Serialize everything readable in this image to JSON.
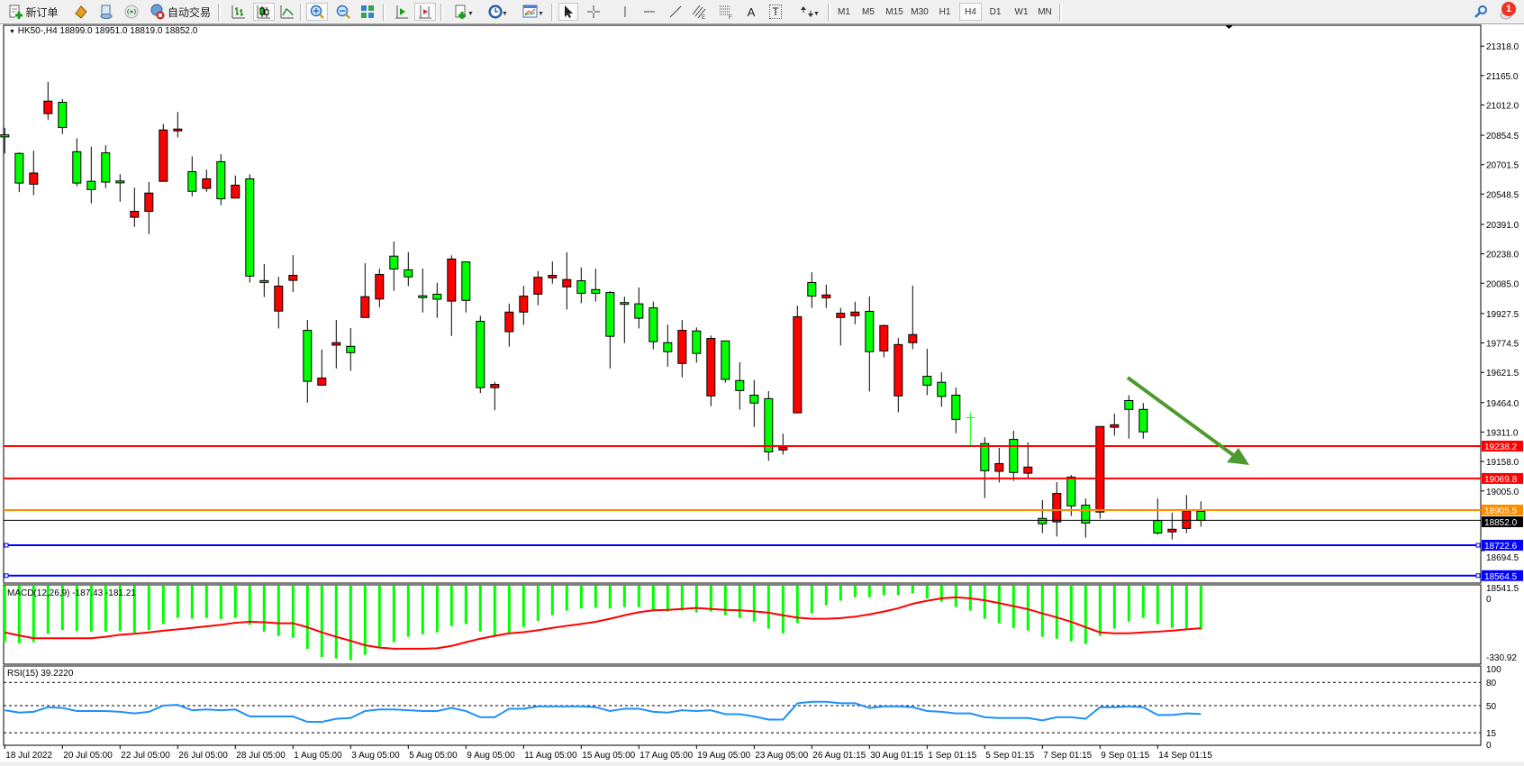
{
  "toolbar": {
    "new_order": "新订单",
    "auto_trading": "自动交易",
    "timeframes": [
      "M1",
      "M5",
      "M15",
      "M30",
      "H1",
      "H4",
      "D1",
      "W1",
      "MN"
    ],
    "active_timeframe": "H4",
    "tool_text_A": "A",
    "tool_text_T": "T",
    "notification_count": "1",
    "icons": [
      "new-order-icon",
      "history-icon",
      "market-watch-icon",
      "signals-icon",
      "auto-trading-icon",
      "bar-chart-icon",
      "candlestick-icon",
      "line-chart-icon",
      "zoom-in-icon",
      "zoom-out-icon",
      "tile-windows-icon",
      "autoscroll-icon",
      "chart-shift-icon",
      "indicators-icon",
      "periods-icon",
      "templates-icon",
      "cursor-icon",
      "crosshair-icon",
      "vertical-line-icon",
      "horizontal-line-icon",
      "trendline-icon",
      "equidistant-channel-icon",
      "fibonacci-icon",
      "text-icon",
      "text-label-icon",
      "arrows-icon",
      "search-icon",
      "notifications-icon"
    ]
  },
  "chart_header": "HK50-,H4  18899.0 18951.0 18819.0 18852.0",
  "chart_data": [
    {
      "type": "candlestick",
      "symbol": "HK50-",
      "timeframe": "H4",
      "ohlc_header": {
        "open": 18899.0,
        "high": 18951.0,
        "low": 18819.0,
        "close": 18852.0
      },
      "ylim": [
        18525.9,
        21426.6
      ],
      "yticks": [
        "21318.0",
        "21165.0",
        "21012.0",
        "20854.5",
        "20701.5",
        "20548.5",
        "20391.0",
        "20238.0",
        "20085.0",
        "19927.5",
        "19774.5",
        "19621.5",
        "19464.0",
        "19311.0",
        "19158.0",
        "19005.0",
        "18694.5",
        "18541.5"
      ],
      "xticks": [
        "18 Jul 2022",
        "20 Jul 05:00",
        "22 Jul 05:00",
        "26 Jul 05:00",
        "28 Jul 05:00",
        "1 Aug 05:00",
        "3 Aug 05:00",
        "5 Aug 05:00",
        "9 Aug 05:00",
        "11 Aug 05:00",
        "15 Aug 05:00",
        "17 Aug 05:00",
        "19 Aug 05:00",
        "23 Aug 05:00",
        "26 Aug 01:15",
        "30 Aug 01:15",
        "1 Sep 01:15",
        "5 Sep 01:15",
        "7 Sep 01:15",
        "9 Sep 01:15",
        "14 Sep 01:15"
      ],
      "colors": {
        "bull": "#FF0000",
        "bear": "#00FF00",
        "doji": "#00FF00",
        "outline": "#000000"
      },
      "ohlc": [
        [
          20852,
          20893,
          20760,
          20846
        ],
        [
          20760,
          20765,
          20559,
          20606
        ],
        [
          20600,
          20774,
          20543,
          20658
        ],
        [
          20967,
          21132,
          20936,
          21032
        ],
        [
          21026,
          21043,
          20861,
          20895
        ],
        [
          20769,
          20839,
          20589,
          20606
        ],
        [
          20615,
          20795,
          20500,
          20572
        ],
        [
          20763,
          20802,
          20580,
          20611
        ],
        [
          20612,
          20652,
          20509,
          20607
        ],
        [
          20428,
          20582,
          20378,
          20459
        ],
        [
          20459,
          20611,
          20341,
          20554
        ],
        [
          20615,
          20913,
          20615,
          20882
        ],
        [
          20878,
          20976,
          20843,
          20882
        ],
        [
          20665,
          20745,
          20537,
          20563
        ],
        [
          20578,
          20676,
          20561,
          20628
        ],
        [
          20717,
          20756,
          20491,
          20524
        ],
        [
          20528,
          20645,
          20528,
          20595
        ],
        [
          20628,
          20652,
          20089,
          20122
        ],
        [
          20094,
          20185,
          20013,
          20090
        ],
        [
          19940,
          20118,
          19850,
          20070
        ],
        [
          20100,
          20231,
          20040,
          20126
        ],
        [
          19840,
          19894,
          19464,
          19575
        ],
        [
          19555,
          19740,
          19555,
          19592
        ],
        [
          19763,
          19894,
          19642,
          19776
        ],
        [
          19757,
          19852,
          19629,
          19724
        ],
        [
          19907,
          20189,
          19907,
          20015
        ],
        [
          20003,
          20161,
          19959,
          20131
        ],
        [
          20226,
          20302,
          20046,
          20159
        ],
        [
          20155,
          20246,
          20070,
          20118
        ],
        [
          20015,
          20161,
          19933,
          20011
        ],
        [
          20028,
          20087,
          19905,
          20002
        ],
        [
          19992,
          20230,
          19811,
          20211
        ],
        [
          20196,
          20196,
          19933,
          19996
        ],
        [
          19887,
          19916,
          19514,
          19542
        ],
        [
          19542,
          19572,
          19424,
          19559
        ],
        [
          19833,
          19979,
          19755,
          19935
        ],
        [
          19935,
          20072,
          19868,
          20018
        ],
        [
          20028,
          20148,
          19970,
          20116
        ],
        [
          20113,
          20198,
          20083,
          20126
        ],
        [
          20066,
          20246,
          19948,
          20104
        ],
        [
          20098,
          20167,
          19981,
          20033
        ],
        [
          20052,
          20161,
          19990,
          20033
        ],
        [
          20037,
          20044,
          19642,
          19809
        ],
        [
          19980,
          20015,
          19774,
          19976
        ],
        [
          19978,
          20063,
          19850,
          19903
        ],
        [
          19957,
          19989,
          19742,
          19781
        ],
        [
          19776,
          19870,
          19651,
          19729
        ],
        [
          19668,
          19894,
          19596,
          19840
        ],
        [
          19837,
          19855,
          19672,
          19720
        ],
        [
          19499,
          19813,
          19446,
          19798
        ],
        [
          19785,
          19785,
          19568,
          19585
        ],
        [
          19579,
          19674,
          19427,
          19527
        ],
        [
          19503,
          19581,
          19338,
          19462
        ],
        [
          19485,
          19524,
          19162,
          19208
        ],
        [
          19218,
          19303,
          19194,
          19233
        ],
        [
          19411,
          19968,
          19411,
          19911
        ],
        [
          20089,
          20142,
          19957,
          20018
        ],
        [
          20009,
          20078,
          19957,
          20024
        ],
        [
          19907,
          19957,
          19761,
          19929
        ],
        [
          19916,
          19989,
          19872,
          19935
        ],
        [
          19939,
          20017,
          19522,
          19729
        ],
        [
          19733,
          19870,
          19700,
          19865
        ],
        [
          19499,
          19800,
          19414,
          19766
        ],
        [
          19776,
          20072,
          19742,
          19818
        ],
        [
          19601,
          19744,
          19503,
          19555
        ],
        [
          19570,
          19622,
          19442,
          19496
        ],
        [
          19503,
          19542,
          19305,
          19377
        ],
        [
          19386,
          19414,
          19240,
          19386
        ],
        [
          19251,
          19284,
          18968,
          19110
        ],
        [
          19107,
          19229,
          19049,
          19147
        ],
        [
          19273,
          19318,
          19057,
          19101
        ],
        [
          19097,
          19257,
          19073,
          19129
        ],
        [
          18862,
          18957,
          18786,
          18834
        ],
        [
          18844,
          19051,
          18768,
          18992
        ],
        [
          19077,
          19088,
          18875,
          18927
        ],
        [
          18931,
          18966,
          18762,
          18838
        ],
        [
          18895,
          19340,
          18860,
          19340
        ],
        [
          19336,
          19407,
          19292,
          19349
        ],
        [
          19475,
          19503,
          19277,
          19429
        ],
        [
          19429,
          19462,
          19277,
          19312
        ],
        [
          18851,
          18966,
          18777,
          18786
        ],
        [
          18792,
          18892,
          18753,
          18801
        ],
        [
          18810,
          18984,
          18786,
          18901
        ],
        [
          18899,
          18951,
          18819,
          18852
        ]
      ],
      "levels": [
        {
          "price": 19238.2,
          "label": "19238.2",
          "color": "#FF0000"
        },
        {
          "price": 19069.8,
          "label": "19069.8",
          "color": "#FF0000"
        },
        {
          "price": 18905.5,
          "label": "18905.5",
          "color": "#FF8C00"
        },
        {
          "price": 18852.0,
          "label": "18852.0",
          "color": "#000000"
        },
        {
          "price": 18722.6,
          "label": "18722.6",
          "color": "#0000FF"
        },
        {
          "price": 18564.5,
          "label": "18564.5",
          "color": "#0000FF"
        }
      ],
      "annotation_arrow_color": "#4E9A2C"
    },
    {
      "type": "bar+line",
      "indicator": "MACD(12,26,9)",
      "label": "MACD(12,26,9) -187.43 -181.21",
      "ylim": [
        -330.92,
        0
      ],
      "yticks": [
        "0",
        "-330.92"
      ],
      "colors": {
        "histogram": "#00FF00",
        "signal": "#FF0000"
      },
      "histogram": [
        -241,
        -246,
        -241,
        -205,
        -189,
        -194,
        -196,
        -196,
        -194,
        -201,
        -189,
        -164,
        -137,
        -141,
        -137,
        -142,
        -137,
        -167,
        -196,
        -214,
        -222,
        -269,
        -304,
        -310,
        -318,
        -295,
        -260,
        -241,
        -218,
        -207,
        -199,
        -172,
        -164,
        -196,
        -214,
        -199,
        -176,
        -150,
        -126,
        -106,
        -97,
        -94,
        -97,
        -91,
        -91,
        -106,
        -110,
        -106,
        -114,
        -110,
        -126,
        -137,
        -153,
        -183,
        -203,
        -160,
        -118,
        -83,
        -64,
        -49,
        -49,
        -41,
        -41,
        -33,
        -54,
        -68,
        -91,
        -106,
        -141,
        -160,
        -180,
        -191,
        -218,
        -226,
        -237,
        -249,
        -214,
        -183,
        -153,
        -137,
        -164,
        -180,
        -183,
        -187.43
      ],
      "signal": [
        -199,
        -212,
        -224,
        -224,
        -224,
        -224,
        -224,
        -218,
        -209,
        -205,
        -199,
        -192,
        -186,
        -180,
        -173,
        -167,
        -158,
        -154,
        -156,
        -160,
        -160,
        -177,
        -199,
        -218,
        -235,
        -254,
        -264,
        -269,
        -269,
        -269,
        -267,
        -257,
        -241,
        -226,
        -214,
        -203,
        -198,
        -190,
        -180,
        -171,
        -163,
        -154,
        -141,
        -126,
        -113,
        -105,
        -103,
        -99,
        -95,
        -99,
        -103,
        -105,
        -109,
        -115,
        -126,
        -136,
        -141,
        -141,
        -138,
        -132,
        -122,
        -110,
        -96,
        -77,
        -64,
        -54,
        -49,
        -54,
        -62,
        -74,
        -87,
        -100,
        -118,
        -135,
        -154,
        -177,
        -199,
        -203,
        -203,
        -199,
        -196,
        -192,
        -186,
        -181.21
      ]
    },
    {
      "type": "line",
      "indicator": "RSI(15)",
      "label": "RSI(15) 39.2220",
      "ylim": [
        0,
        100
      ],
      "levels": [
        80,
        50,
        15
      ],
      "yticks": [
        "100",
        "80",
        "50",
        "15",
        "0"
      ],
      "color": "#1E90FF",
      "values": [
        44,
        41,
        42,
        48,
        47,
        43,
        43,
        43,
        42,
        40,
        42,
        50,
        51,
        44,
        45,
        44,
        45,
        36,
        36,
        36,
        36,
        29,
        29,
        33,
        34,
        43,
        45,
        45,
        44,
        43,
        43,
        47,
        43,
        35,
        35,
        46,
        46,
        49,
        49,
        49,
        49,
        48,
        43,
        46,
        46,
        42,
        41,
        44,
        43,
        44,
        39,
        39,
        36,
        32,
        32,
        53,
        55,
        55,
        53,
        53,
        47,
        49,
        49,
        48,
        43,
        42,
        40,
        40,
        35,
        34,
        34,
        34,
        31,
        35,
        35,
        33,
        48,
        48,
        49,
        48,
        38,
        38,
        40,
        39.222
      ]
    }
  ]
}
